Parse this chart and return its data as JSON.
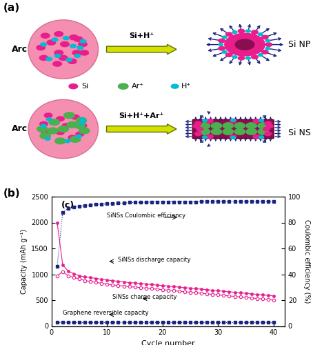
{
  "panel_a_label": "(a)",
  "panel_b_label": "(b)",
  "panel_c_label": "(c)",
  "arc_label": "Arc",
  "si_np_label": "Si NP",
  "si_ns_label": "Si NS",
  "arrow1_label": "Si+H⁺",
  "arrow2_label": "Si+H⁺+Ar⁺",
  "legend_si": "Si",
  "legend_ar": "Ar⁺",
  "legend_h": "H⁺",
  "legend_si_color": "#e91e8c",
  "legend_ar_color": "#4caf50",
  "legend_h_color": "#00bcd4",
  "ellipse_bg": "#f48fb1",
  "ellipse_edge": "#d47090",
  "arrow_fc": "#d4e000",
  "arrow_ec": "#5a7000",
  "spike_color": "#1a237e",
  "np_core_outer": "#e91e8c",
  "np_core_inner": "#880e4f",
  "ns_bg": "#880e4f",
  "ylabel_left": "Capacity (mAh g⁻¹)",
  "ylabel_right": "Coulombic efficiency (%)",
  "xlabel": "Cycle number",
  "ylim_left": [
    0,
    2500
  ],
  "ylim_right": [
    0,
    100
  ],
  "yticks_left": [
    0,
    500,
    1000,
    1500,
    2000,
    2500
  ],
  "yticks_right": [
    0,
    20,
    40,
    60,
    80,
    100
  ],
  "xlim": [
    0,
    42
  ],
  "xticks": [
    0,
    10,
    20,
    30,
    40
  ],
  "discharge_color": "#e91e8c",
  "charge_color": "#f48fb1",
  "coulombic_color": "#1a237e",
  "graphene_color": "#1a237e",
  "discharge_x": [
    1,
    2,
    3,
    4,
    5,
    6,
    7,
    8,
    9,
    10,
    11,
    12,
    13,
    14,
    15,
    16,
    17,
    18,
    19,
    20,
    21,
    22,
    23,
    24,
    25,
    26,
    27,
    28,
    29,
    30,
    31,
    32,
    33,
    34,
    35,
    36,
    37,
    38,
    39,
    40
  ],
  "discharge_y": [
    2000,
    1180,
    1060,
    1010,
    970,
    950,
    935,
    920,
    905,
    890,
    875,
    865,
    852,
    840,
    832,
    822,
    812,
    802,
    792,
    782,
    772,
    762,
    752,
    742,
    732,
    722,
    712,
    702,
    692,
    682,
    672,
    662,
    652,
    642,
    632,
    622,
    612,
    602,
    592,
    582
  ],
  "charge_x": [
    1,
    2,
    3,
    4,
    5,
    6,
    7,
    8,
    9,
    10,
    11,
    12,
    13,
    14,
    15,
    16,
    17,
    18,
    19,
    20,
    21,
    22,
    23,
    24,
    25,
    26,
    27,
    28,
    29,
    30,
    31,
    32,
    33,
    34,
    35,
    36,
    37,
    38,
    39,
    40
  ],
  "charge_y": [
    970,
    1050,
    970,
    940,
    910,
    880,
    860,
    845,
    825,
    808,
    795,
    782,
    772,
    762,
    752,
    742,
    732,
    722,
    712,
    702,
    692,
    682,
    672,
    662,
    652,
    642,
    632,
    622,
    612,
    602,
    592,
    582,
    572,
    562,
    552,
    542,
    532,
    522,
    512,
    502
  ],
  "coulombic_x": [
    1,
    2,
    3,
    4,
    5,
    6,
    7,
    8,
    9,
    10,
    11,
    12,
    13,
    14,
    15,
    16,
    17,
    18,
    19,
    20,
    21,
    22,
    23,
    24,
    25,
    26,
    27,
    28,
    29,
    30,
    31,
    32,
    33,
    34,
    35,
    36,
    37,
    38,
    39,
    40
  ],
  "coulombic_y": [
    46,
    88,
    91,
    92,
    92.5,
    93,
    93.5,
    94,
    94,
    94.5,
    94.5,
    95,
    95,
    95.5,
    95.5,
    95.5,
    95.5,
    96,
    96,
    96,
    96,
    96,
    96,
    96,
    96,
    96,
    96.5,
    96.5,
    96.5,
    96.5,
    96.5,
    96.5,
    96.5,
    96.5,
    96.5,
    96.5,
    96.5,
    96.5,
    96.5,
    96.5
  ],
  "graphene_x": [
    1,
    2,
    3,
    4,
    5,
    6,
    7,
    8,
    9,
    10,
    11,
    12,
    13,
    14,
    15,
    16,
    17,
    18,
    19,
    20,
    21,
    22,
    23,
    24,
    25,
    26,
    27,
    28,
    29,
    30,
    31,
    32,
    33,
    34,
    35,
    36,
    37,
    38,
    39,
    40
  ],
  "graphene_y_left": [
    80,
    80,
    80,
    80,
    80,
    80,
    80,
    80,
    80,
    80,
    80,
    80,
    80,
    80,
    80,
    80,
    80,
    80,
    80,
    80,
    80,
    80,
    80,
    80,
    80,
    80,
    80,
    80,
    80,
    80,
    80,
    80,
    80,
    80,
    80,
    80,
    80,
    80,
    80,
    80
  ],
  "annotation_coulombic": "SiNSs Coulombic efficiency",
  "annotation_discharge": "SiNSs discharge capacity",
  "annotation_charge": "SiNSs charge capacity",
  "annotation_graphene": "Graphene reversible capacity"
}
